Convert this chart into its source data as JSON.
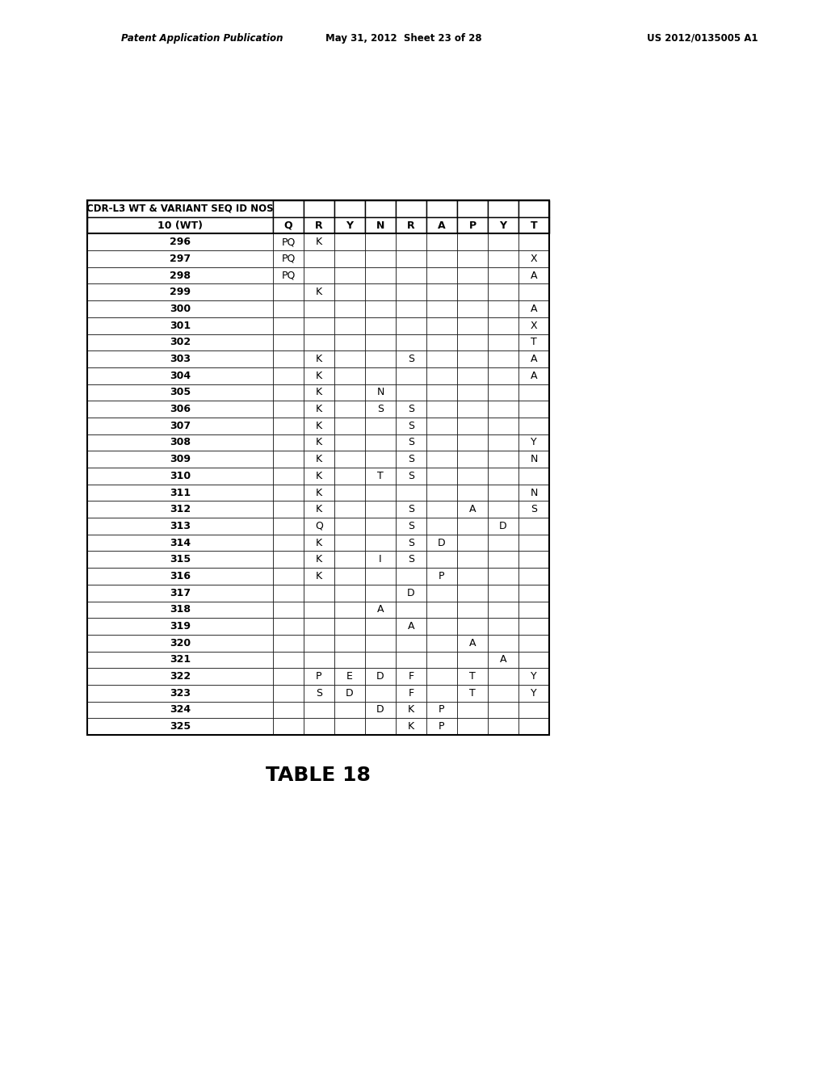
{
  "title": "TABLE 18",
  "header_row1": "CDR-L3 WT & VARIANT SEQ ID NOS",
  "columns": [
    "10 (WT)",
    "Q",
    "R",
    "Y",
    "N",
    "R",
    "A",
    "P",
    "Y",
    "T"
  ],
  "rows": [
    [
      "296",
      "PQ",
      "K",
      "",
      "",
      "",
      "",
      "",
      "",
      ""
    ],
    [
      "297",
      "PQ",
      "",
      "",
      "",
      "",
      "",
      "",
      "",
      "X"
    ],
    [
      "298",
      "PQ",
      "",
      "",
      "",
      "",
      "",
      "",
      "",
      "A"
    ],
    [
      "299",
      "",
      "K",
      "",
      "",
      "",
      "",
      "",
      "",
      ""
    ],
    [
      "300",
      "",
      "",
      "",
      "",
      "",
      "",
      "",
      "",
      "A"
    ],
    [
      "301",
      "",
      "",
      "",
      "",
      "",
      "",
      "",
      "",
      "X"
    ],
    [
      "302",
      "",
      "",
      "",
      "",
      "",
      "",
      "",
      "",
      "T"
    ],
    [
      "303",
      "",
      "K",
      "",
      "",
      "S",
      "",
      "",
      "",
      "A"
    ],
    [
      "304",
      "",
      "K",
      "",
      "",
      "",
      "",
      "",
      "",
      "A"
    ],
    [
      "305",
      "",
      "K",
      "",
      "N",
      "",
      "",
      "",
      "",
      ""
    ],
    [
      "306",
      "",
      "K",
      "",
      "S",
      "S",
      "",
      "",
      "",
      ""
    ],
    [
      "307",
      "",
      "K",
      "",
      "",
      "S",
      "",
      "",
      "",
      ""
    ],
    [
      "308",
      "",
      "K",
      "",
      "",
      "S",
      "",
      "",
      "",
      "Y"
    ],
    [
      "309",
      "",
      "K",
      "",
      "",
      "S",
      "",
      "",
      "",
      "N"
    ],
    [
      "310",
      "",
      "K",
      "",
      "T",
      "S",
      "",
      "",
      "",
      ""
    ],
    [
      "311",
      "",
      "K",
      "",
      "",
      "",
      "",
      "",
      "",
      "N"
    ],
    [
      "312",
      "",
      "K",
      "",
      "",
      "S",
      "",
      "A",
      "",
      "S"
    ],
    [
      "313",
      "",
      "Q",
      "",
      "",
      "S",
      "",
      "",
      "D",
      ""
    ],
    [
      "314",
      "",
      "K",
      "",
      "",
      "S",
      "D",
      "",
      "",
      ""
    ],
    [
      "315",
      "",
      "K",
      "",
      "I",
      "S",
      "",
      "",
      "",
      ""
    ],
    [
      "316",
      "",
      "K",
      "",
      "",
      "",
      "P",
      "",
      "",
      ""
    ],
    [
      "317",
      "",
      "",
      "",
      "",
      "D",
      "",
      "",
      "",
      ""
    ],
    [
      "318",
      "",
      "",
      "",
      "A",
      "",
      "",
      "",
      "",
      ""
    ],
    [
      "319",
      "",
      "",
      "",
      "",
      "A",
      "",
      "",
      "",
      ""
    ],
    [
      "320",
      "",
      "",
      "",
      "",
      "",
      "",
      "A",
      "",
      ""
    ],
    [
      "321",
      "",
      "",
      "",
      "",
      "",
      "",
      "",
      "A",
      ""
    ],
    [
      "322",
      "",
      "P",
      "E",
      "D",
      "F",
      "",
      "T",
      "",
      "Y"
    ],
    [
      "323",
      "",
      "S",
      "D",
      "",
      "F",
      "",
      "T",
      "",
      "Y"
    ],
    [
      "324",
      "",
      "",
      "",
      "D",
      "K",
      "P",
      "",
      "",
      ""
    ],
    [
      "325",
      "",
      "",
      "",
      "",
      "K",
      "P",
      "",
      "",
      ""
    ]
  ],
  "bg_color": "#ffffff",
  "border_color": "#000000",
  "text_color": "#000000",
  "font_size": 9,
  "title_font_size": 18,
  "page_header_left": "Patent Application Publication",
  "page_header_mid": "May 31, 2012  Sheet 23 of 28",
  "page_header_right": "US 2012/0135005 A1"
}
